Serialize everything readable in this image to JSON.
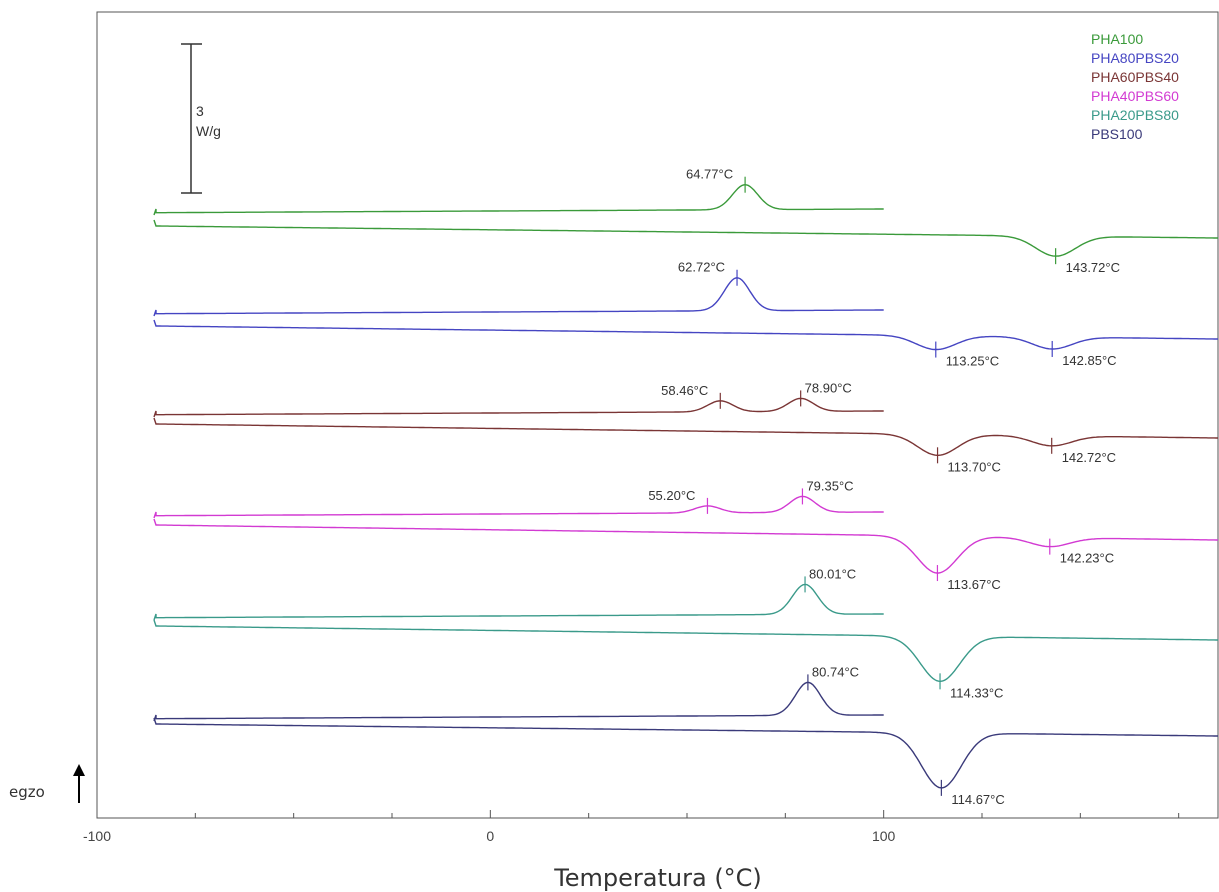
{
  "chart_data": {
    "type": "line",
    "xlabel": "Temperatura (°C)",
    "ylabel": "",
    "xlim": [
      -100,
      185
    ],
    "x_ticks": [
      -100,
      0,
      100
    ],
    "x_tick_labels": [
      "-100",
      "0",
      "100"
    ],
    "grid": false,
    "legend_position": "top-right",
    "exo_direction_label": "egzo",
    "scale_bar": {
      "value": "3",
      "unit": "W/g"
    },
    "series": [
      {
        "name": "PHA100",
        "color": "#3a9a3a",
        "cooling_peaks": [
          {
            "x": 64.77,
            "label": "64.77°C"
          }
        ],
        "heating_peaks": [
          {
            "x": 143.72,
            "label": "143.72°C"
          }
        ]
      },
      {
        "name": "PHA80PBS20",
        "color": "#4545c2",
        "cooling_peaks": [
          {
            "x": 62.72,
            "label": "62.72°C"
          }
        ],
        "heating_peaks": [
          {
            "x": 113.25,
            "label": "113.25°C"
          },
          {
            "x": 142.85,
            "label": "142.85°C"
          }
        ]
      },
      {
        "name": "PHA60PBS40",
        "color": "#7a3535",
        "cooling_peaks": [
          {
            "x": 58.46,
            "label": "58.46°C"
          },
          {
            "x": 78.9,
            "label": "78.90°C"
          }
        ],
        "heating_peaks": [
          {
            "x": 113.7,
            "label": "113.70°C"
          },
          {
            "x": 142.72,
            "label": "142.72°C"
          }
        ]
      },
      {
        "name": "PHA40PBS60",
        "color": "#d23ad2",
        "cooling_peaks": [
          {
            "x": 55.2,
            "label": "55.20°C"
          },
          {
            "x": 79.35,
            "label": "79.35°C"
          }
        ],
        "heating_peaks": [
          {
            "x": 113.67,
            "label": "113.67°C"
          },
          {
            "x": 142.23,
            "label": "142.23°C"
          }
        ]
      },
      {
        "name": "PHA20PBS80",
        "color": "#3a9a8a",
        "cooling_peaks": [
          {
            "x": 80.01,
            "label": "80.01°C"
          }
        ],
        "heating_peaks": [
          {
            "x": 114.33,
            "label": "114.33°C"
          }
        ]
      },
      {
        "name": "PBS100",
        "color": "#3a3a7a",
        "cooling_peaks": [
          {
            "x": 80.74,
            "label": "80.74°C"
          }
        ],
        "heating_peaks": [
          {
            "x": 114.67,
            "label": "114.67°C"
          }
        ]
      }
    ]
  }
}
